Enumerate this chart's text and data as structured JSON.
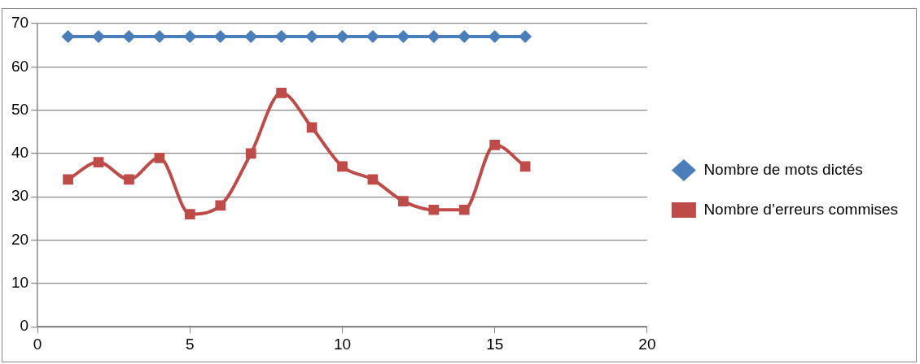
{
  "chart_data": {
    "type": "line",
    "x": [
      1,
      2,
      3,
      4,
      5,
      6,
      7,
      8,
      9,
      10,
      11,
      12,
      13,
      14,
      15,
      16
    ],
    "series": [
      {
        "name": "Nombre de mots dictés",
        "color": "#4a7ebb",
        "marker": "diamond",
        "values": [
          67,
          67,
          67,
          67,
          67,
          67,
          67,
          67,
          67,
          67,
          67,
          67,
          67,
          67,
          67,
          67
        ]
      },
      {
        "name": "Nombre d’erreurs commises",
        "color": "#be4b48",
        "marker": "square",
        "values": [
          34,
          38,
          34,
          39,
          26,
          28,
          40,
          54,
          46,
          37,
          34,
          29,
          27,
          27,
          42,
          37
        ]
      }
    ],
    "xlim": [
      0,
      20
    ],
    "xticks": [
      0,
      5,
      10,
      15,
      20
    ],
    "ylim": [
      0,
      70
    ],
    "yticks": [
      0,
      10,
      20,
      30,
      40,
      50,
      60,
      70
    ],
    "grid": "y",
    "legend": "right"
  }
}
